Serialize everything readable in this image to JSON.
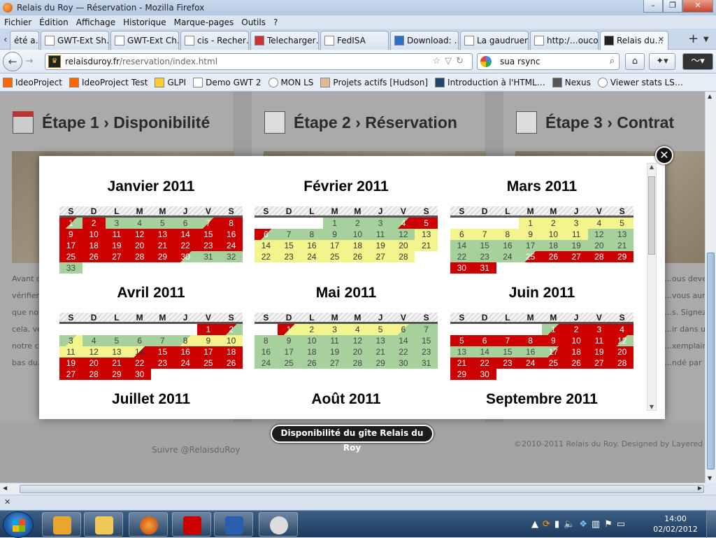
{
  "window": {
    "title": "Relais du Roy — Réservation - Mozilla Firefox",
    "buttons": [
      "–",
      "❐",
      "✕"
    ]
  },
  "menu": [
    "Fichier",
    "Édition",
    "Affichage",
    "Historique",
    "Marque-pages",
    "Outils",
    "?"
  ],
  "tabs": [
    {
      "label": "été a…",
      "active": false,
      "closable": false
    },
    {
      "label": "GWT-Ext Sh…",
      "active": false,
      "closable": false
    },
    {
      "label": "GWT-Ext Ch…",
      "active": false,
      "closable": false
    },
    {
      "label": "cis - Recher…",
      "active": false,
      "closable": false
    },
    {
      "label": "Telecharger…",
      "active": false,
      "closable": false
    },
    {
      "label": "FedISA",
      "active": false,
      "closable": false
    },
    {
      "label": "Download: …",
      "active": false,
      "closable": false
    },
    {
      "label": "La gaudruere",
      "active": false,
      "closable": false
    },
    {
      "label": "http:/…oucou",
      "active": false,
      "closable": false
    },
    {
      "label": "Relais du…",
      "active": true,
      "closable": true
    }
  ],
  "nav": {
    "url_host": "relaisduroy.fr",
    "url_path": "/reservation/index.html",
    "search_value": "sua rsync"
  },
  "bookmarks": [
    "IdeoProject",
    "IdeoProject Test",
    "GLPI",
    "Demo GWT 2",
    "MON LS",
    "Projets actifs [Hudson]",
    "Introduction à l'HTML…",
    "Nexus",
    "Viewer stats LS…"
  ],
  "page": {
    "steps": [
      {
        "title": "Étape 1 › Disponibilité",
        "text": [
          "Avant d…",
          "vérifier…",
          "que no…",
          "cela, ve…",
          "notre c…",
          "bas du…"
        ]
      },
      {
        "title": "Étape 2 › Réservation",
        "text": [
          "",
          "",
          "",
          "",
          "",
          ""
        ]
      },
      {
        "title": "Étape 3 › Contrat",
        "text": [
          "…ous devez n…",
          "…vous aurez…",
          "…s. Signez…",
          "…ir dans un…",
          "…xemplaires s…",
          "…ndé par ret…"
        ]
      }
    ],
    "footer": {
      "follow": "Suivre @RelaisduRoy",
      "copyright": "©2010-2011 Relais du Roy. Designed by Layered Pix"
    }
  },
  "lightbox": {
    "caption": "Disponibilité du gîte Relais du Roy",
    "close_label": "✕",
    "weekdays": [
      "S",
      "D",
      "L",
      "M",
      "M",
      "J",
      "V",
      "S"
    ],
    "months": [
      {
        "name": "Janvier 2011",
        "offset": 0,
        "days": [
          "rg",
          "r",
          "g",
          "g",
          "g",
          "g",
          "gr",
          "r",
          "r",
          "r",
          "r",
          "r",
          "r",
          "r",
          "r",
          "r",
          "r",
          "r",
          "r",
          "r",
          "r",
          "r",
          "r",
          "r",
          "r",
          "r",
          "r",
          "r",
          "r",
          "rg",
          "g",
          "g",
          "g"
        ]
      },
      {
        "name": "Février 2011",
        "offset": 3,
        "days": [
          "g",
          "g",
          "g",
          "gr",
          "r",
          "rg",
          "g",
          "g",
          "g",
          "g",
          "g",
          "g",
          "y",
          "y",
          "y",
          "y",
          "y",
          "y",
          "y",
          "y",
          "y",
          "y",
          "y",
          "y",
          "y",
          "y",
          "y",
          "y"
        ]
      },
      {
        "name": "Mars 2011",
        "offset": 3,
        "days": [
          "y",
          "y",
          "y",
          "y",
          "y",
          "y",
          "y",
          "y",
          "y",
          "y",
          "y",
          "g",
          "g",
          "g",
          "g",
          "g",
          "g",
          "g",
          "g",
          "g",
          "g",
          "g",
          "g",
          "g",
          "gr",
          "r",
          "r",
          "r",
          "r",
          "r",
          "r"
        ]
      },
      {
        "name": "Avril 2011",
        "offset": 6,
        "days": [
          "r",
          "rg",
          "gy",
          "g",
          "g",
          "g",
          "g",
          "gy",
          "y",
          "y",
          "y",
          "y",
          "y",
          "yr",
          "r",
          "r",
          "r",
          "r",
          "r",
          "r",
          "r",
          "r",
          "r",
          "r",
          "r",
          "r",
          "r",
          "r",
          "r",
          "r"
        ]
      },
      {
        "name": "Mai 2011",
        "offset": 1,
        "days": [
          "ry",
          "y",
          "y",
          "y",
          "y",
          "yg",
          "g",
          "g",
          "g",
          "g",
          "g",
          "g",
          "g",
          "g",
          "g",
          "g",
          "g",
          "g",
          "g",
          "g",
          "g",
          "g",
          "g",
          "g",
          "g",
          "g",
          "g",
          "g",
          "g",
          "g",
          "g"
        ]
      },
      {
        "name": "Juin 2011",
        "offset": 4,
        "days": [
          "gr",
          "r",
          "r",
          "r",
          "r",
          "r",
          "r",
          "r",
          "r",
          "r",
          "r",
          "rg",
          "g",
          "g",
          "g",
          "g",
          "gr",
          "r",
          "r",
          "r",
          "r",
          "r",
          "r",
          "r",
          "r",
          "r",
          "r",
          "r",
          "r",
          "r"
        ]
      },
      {
        "name": "Juillet 2011",
        "offset": 0,
        "days": []
      },
      {
        "name": "Août 2011",
        "offset": 0,
        "days": []
      },
      {
        "name": "Septembre 2011",
        "offset": 0,
        "days": []
      }
    ]
  },
  "clock": {
    "time": "14:00",
    "date": "02/02/2012"
  }
}
